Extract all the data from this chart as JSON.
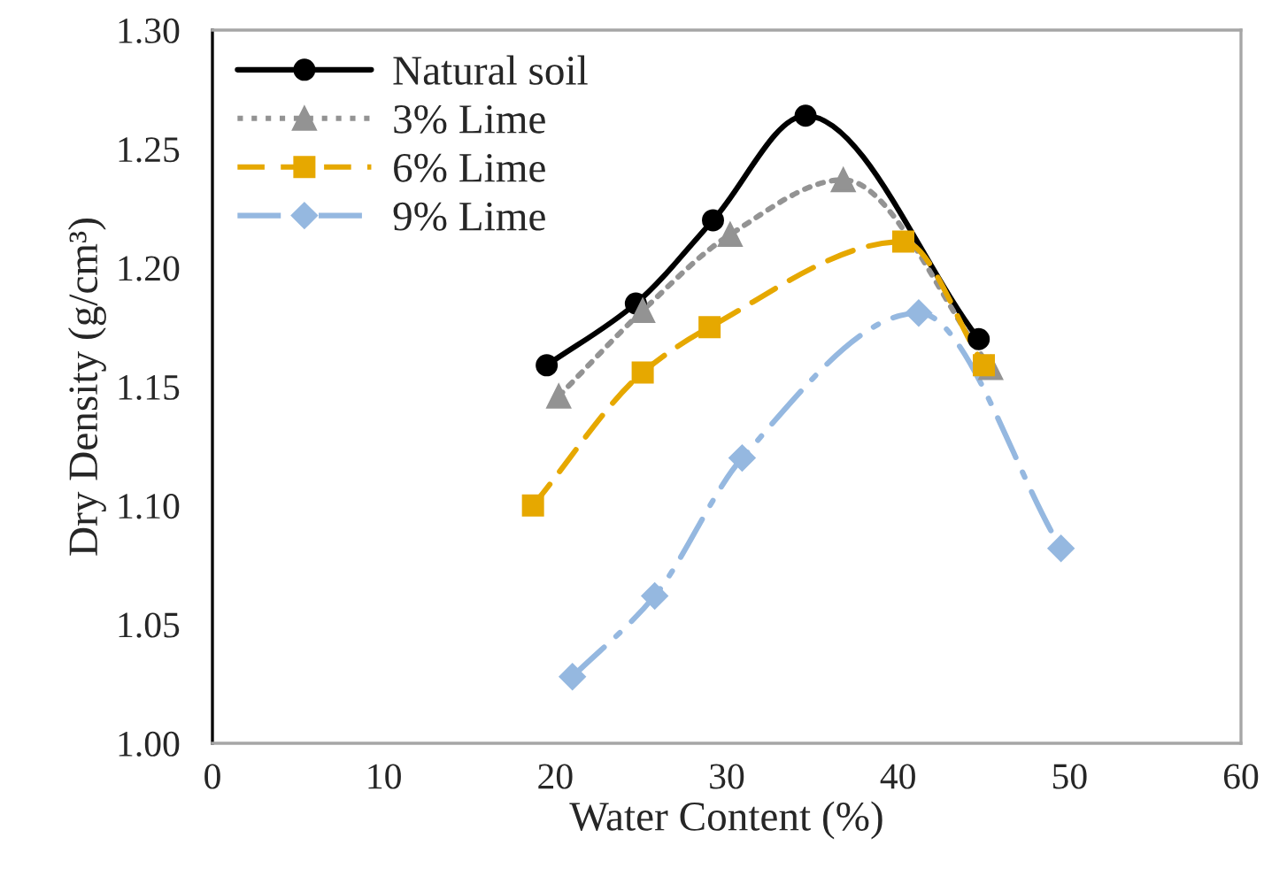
{
  "chart_data": {
    "type": "line",
    "xlabel": "Water Content (%)",
    "ylabel": "Dry Density (g/cm³)",
    "xlim": [
      0,
      60
    ],
    "xticks": [
      0,
      10,
      20,
      30,
      40,
      50,
      60
    ],
    "ylim": [
      1.0,
      1.3
    ],
    "yticks": [
      {
        "value": 1.0,
        "label": "1.00"
      },
      {
        "value": 1.05,
        "label": "1.05"
      },
      {
        "value": 1.1,
        "label": "1.10"
      },
      {
        "value": 1.15,
        "label": "1.15"
      },
      {
        "value": 1.2,
        "label": "1.20"
      },
      {
        "value": 1.25,
        "label": "1.25"
      },
      {
        "value": 1.3,
        "label": "1.30"
      }
    ],
    "grid": false,
    "legend": "top left",
    "series": [
      {
        "name": "Natural soil",
        "color": "#000000",
        "marker": "circle",
        "line_style": "solid",
        "x": [
          19.5,
          24.7,
          29.2,
          34.6,
          44.7
        ],
        "values": [
          1.159,
          1.185,
          1.22,
          1.264,
          1.17
        ]
      },
      {
        "name": "3% Lime",
        "color": "#939393",
        "marker": "triangle",
        "line_style": "dotted",
        "x": [
          20.2,
          25.1,
          30.2,
          36.8,
          45.4
        ],
        "values": [
          1.146,
          1.182,
          1.214,
          1.237,
          1.158
        ]
      },
      {
        "name": "6% Lime",
        "color": "#e6a800",
        "marker": "square",
        "line_style": "dashed",
        "x": [
          18.7,
          25.1,
          29.0,
          40.3,
          45.0
        ],
        "values": [
          1.1,
          1.156,
          1.175,
          1.211,
          1.159
        ]
      },
      {
        "name": "9% Lime",
        "color": "#95b8e0",
        "marker": "diamond",
        "line_style": "dashdot",
        "x": [
          21.0,
          25.8,
          30.9,
          41.2,
          49.5
        ],
        "values": [
          1.028,
          1.062,
          1.12,
          1.181,
          1.082
        ]
      }
    ]
  }
}
